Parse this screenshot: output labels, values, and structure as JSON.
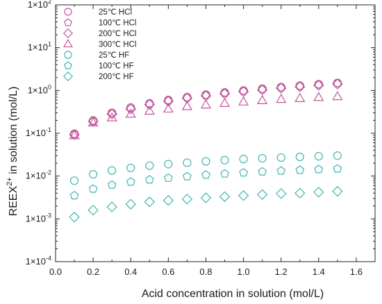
{
  "chart_data": {
    "type": "scatter",
    "title": "",
    "xlabel": "Acid concentration in solution (mol/L)",
    "ylabel": "REEX²⁺ in solution (mol/L)",
    "ylabel_parts": {
      "base": "REEX",
      "sup": "2+",
      "rest": " in solution (mol/L)"
    },
    "xlim": [
      0.0,
      1.7
    ],
    "ylim": [
      0.0001,
      100
    ],
    "yscale": "log",
    "xticks": [
      "0.0",
      "0.2",
      "0.4",
      "0.6",
      "0.8",
      "1.0",
      "1.2",
      "1.4",
      "1.6"
    ],
    "yticks": [
      {
        "mantissa": "1×10",
        "exp": "-4",
        "value": 0.0001
      },
      {
        "mantissa": "1×10",
        "exp": "-3",
        "value": 0.001
      },
      {
        "mantissa": "1×10",
        "exp": "-2",
        "value": 0.01
      },
      {
        "mantissa": "1×10",
        "exp": "-1",
        "value": 0.1
      },
      {
        "mantissa": "1×10",
        "exp": "0",
        "value": 1
      },
      {
        "mantissa": "1×10",
        "exp": "1",
        "value": 10
      },
      {
        "mantissa": "1×10",
        "exp": "2",
        "value": 100
      }
    ],
    "grid": false,
    "legend_position": "top-left",
    "x": [
      0.1,
      0.2,
      0.3,
      0.4,
      0.5,
      0.6,
      0.7,
      0.8,
      0.9,
      1.0,
      1.1,
      1.2,
      1.3,
      1.4,
      1.5
    ],
    "series": [
      {
        "name": "25℃ HCl",
        "marker": "circle",
        "color": "#c0569a",
        "values": [
          0.098,
          0.2,
          0.3,
          0.4,
          0.5,
          0.6,
          0.7,
          0.8,
          0.9,
          1.0,
          1.1,
          1.2,
          1.3,
          1.4,
          1.5
        ]
      },
      {
        "name": "100℃ HCl",
        "marker": "pentagon",
        "color": "#c0569a",
        "values": [
          0.095,
          0.19,
          0.29,
          0.38,
          0.48,
          0.58,
          0.68,
          0.78,
          0.87,
          0.97,
          1.07,
          1.17,
          1.26,
          1.36,
          1.46
        ]
      },
      {
        "name": "200℃ HCl",
        "marker": "diamond",
        "color": "#c0569a",
        "values": [
          0.093,
          0.19,
          0.28,
          0.37,
          0.47,
          0.56,
          0.66,
          0.75,
          0.84,
          0.94,
          1.03,
          1.13,
          1.22,
          1.32,
          1.41
        ]
      },
      {
        "name": "300℃ HCl",
        "marker": "triangle",
        "color": "#c0569a",
        "values": [
          0.088,
          0.175,
          0.23,
          0.28,
          0.33,
          0.37,
          0.42,
          0.46,
          0.5,
          0.54,
          0.58,
          0.62,
          0.65,
          0.69,
          0.72
        ]
      },
      {
        "name": "25℃ HF",
        "marker": "circle",
        "color": "#3fb5b0",
        "values": [
          0.0078,
          0.011,
          0.0135,
          0.0155,
          0.0175,
          0.019,
          0.0205,
          0.022,
          0.0235,
          0.025,
          0.026,
          0.027,
          0.028,
          0.029,
          0.03
        ]
      },
      {
        "name": "100℃ HF",
        "marker": "pentagon",
        "color": "#3fb5b0",
        "values": [
          0.0035,
          0.005,
          0.0062,
          0.0073,
          0.0082,
          0.009,
          0.0098,
          0.0106,
          0.0113,
          0.012,
          0.0126,
          0.0132,
          0.0138,
          0.0143,
          0.0148
        ]
      },
      {
        "name": "200℃ HF",
        "marker": "diamond",
        "color": "#3fb5b0",
        "values": [
          0.0011,
          0.0016,
          0.0019,
          0.0022,
          0.0025,
          0.0027,
          0.0029,
          0.0031,
          0.0033,
          0.0035,
          0.0037,
          0.0039,
          0.004,
          0.0042,
          0.0044
        ]
      }
    ]
  }
}
